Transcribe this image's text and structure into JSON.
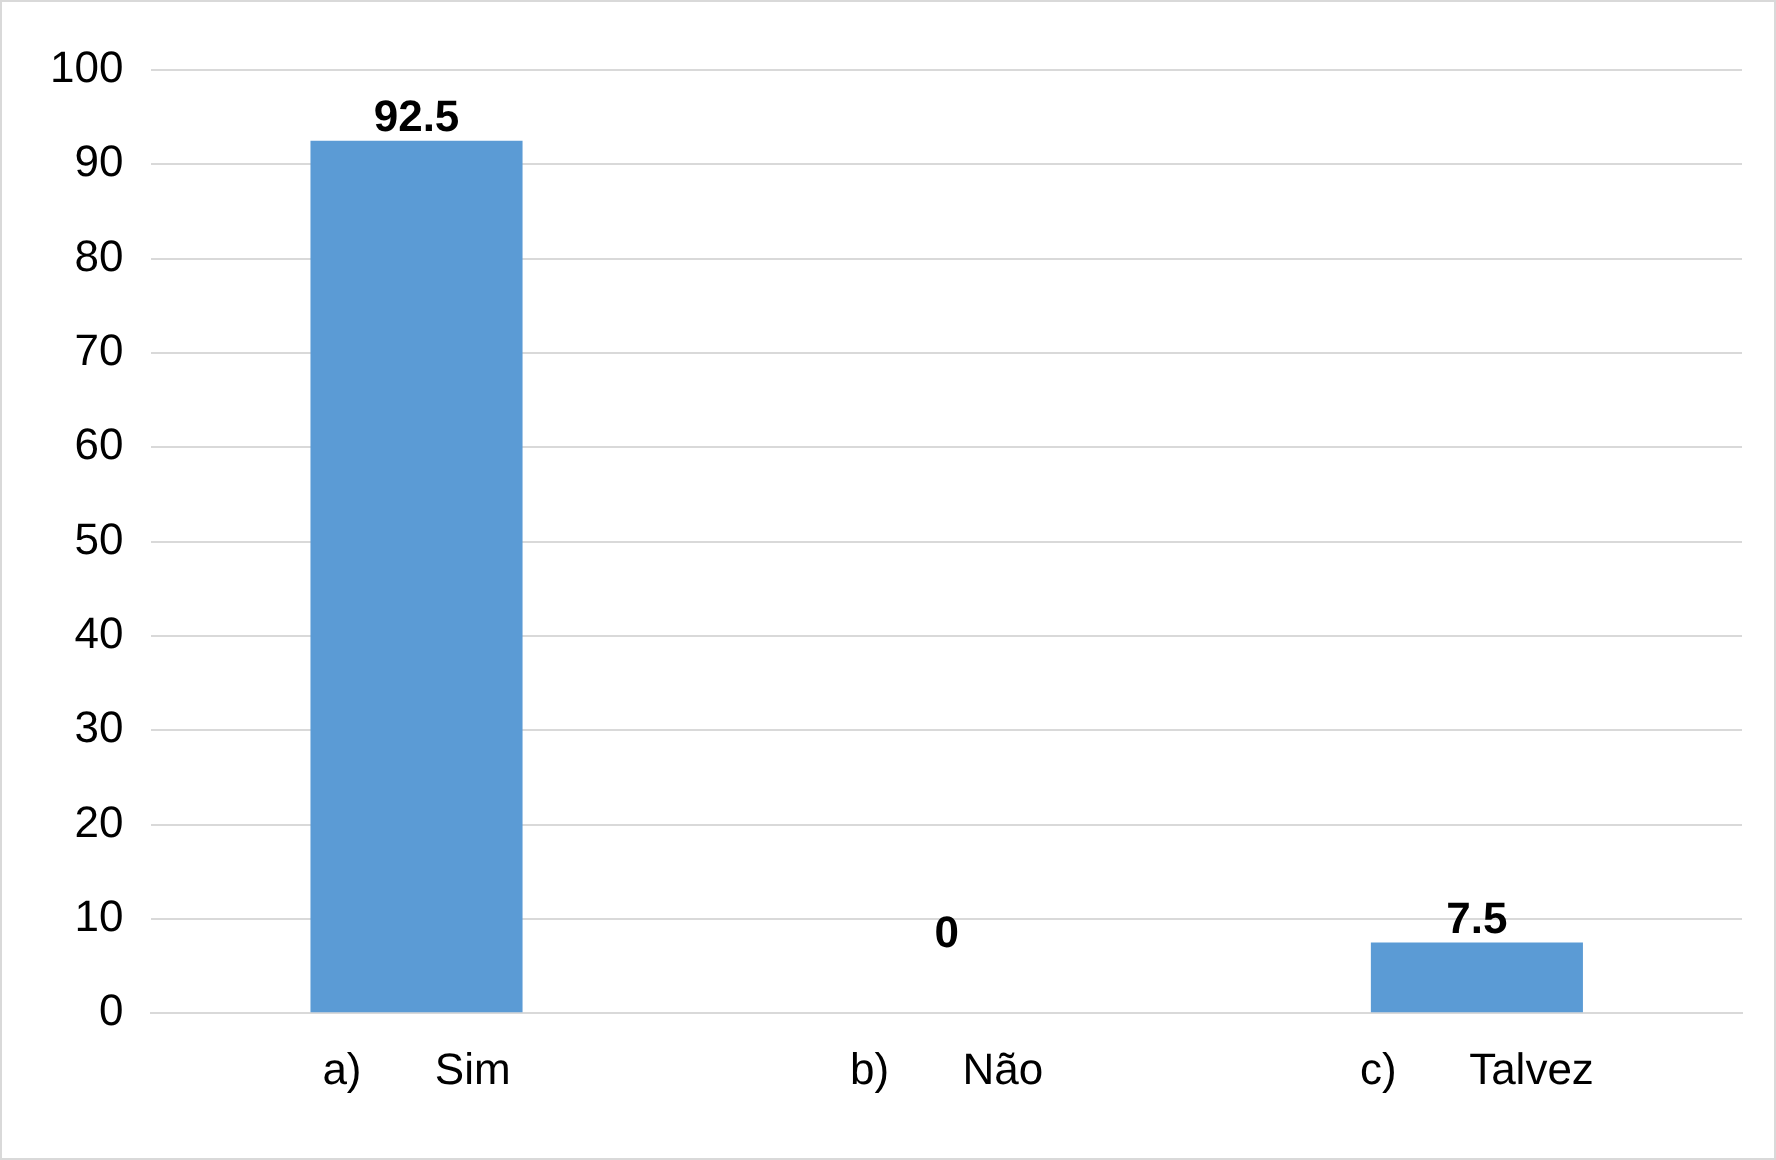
{
  "chart_data": {
    "type": "bar",
    "categories": [
      "a)      Sim",
      "b)      Não",
      "c)      Talvez"
    ],
    "values": [
      92.5,
      0,
      7.5
    ],
    "color": "#5b9bd5",
    "ylim": [
      0,
      100
    ],
    "yticks": [
      0,
      10,
      20,
      30,
      40,
      50,
      60,
      70,
      80,
      90,
      100
    ],
    "grid": "y",
    "data_labels": true
  }
}
